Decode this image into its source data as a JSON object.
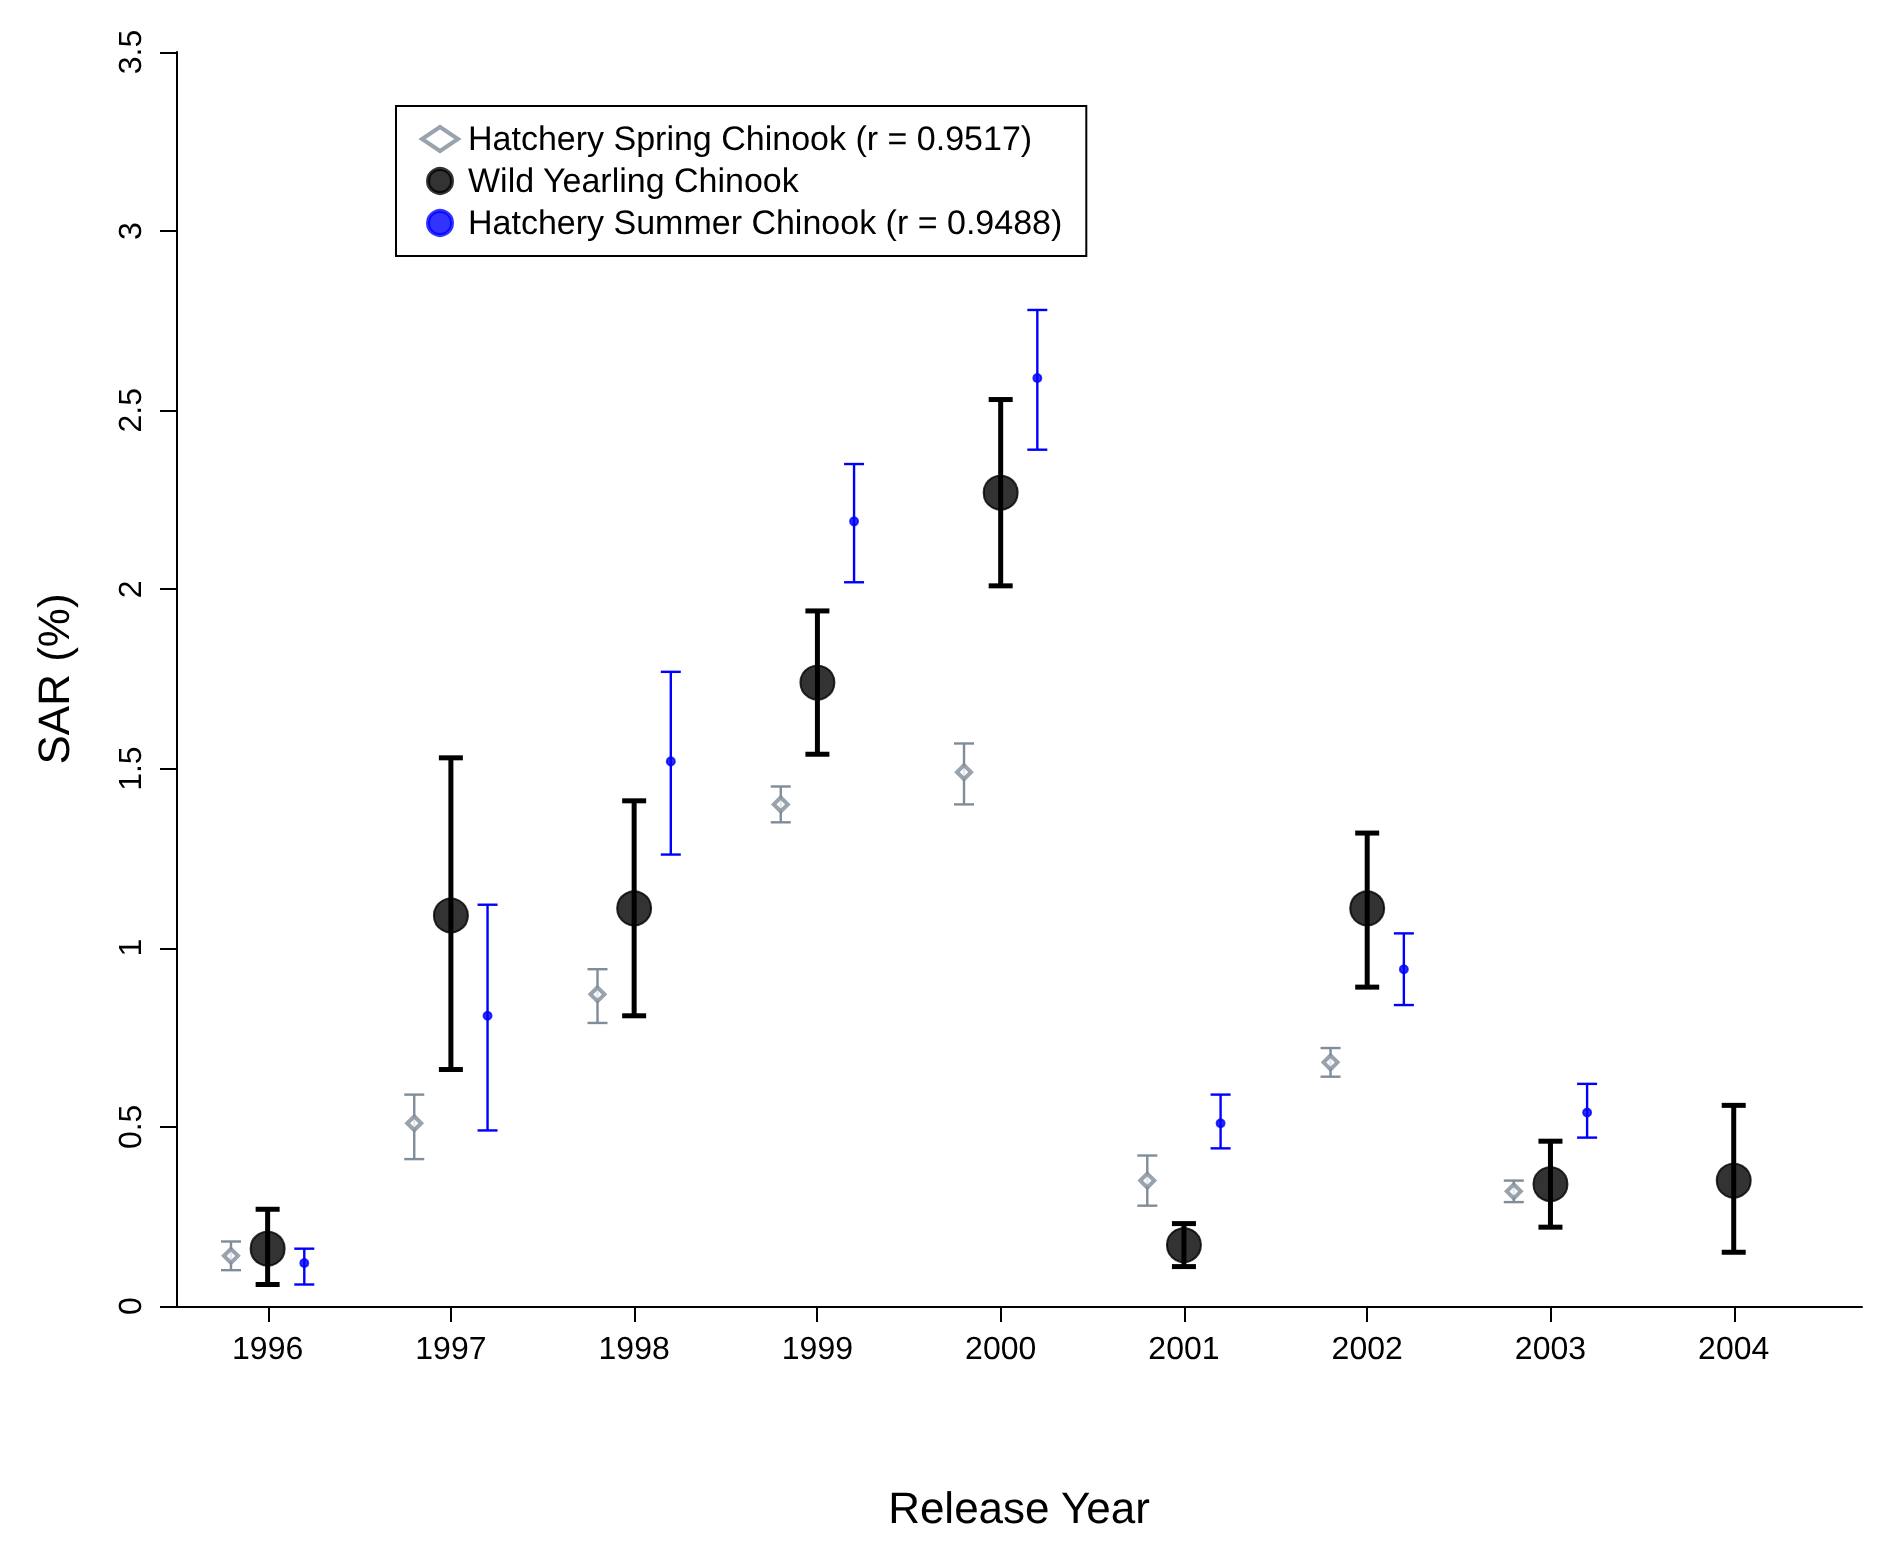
{
  "chart_data": {
    "type": "scatter",
    "xlabel": "Release Year",
    "ylabel": "SAR (%)",
    "xlim": [
      1995.5,
      2004.7
    ],
    "xticks": [
      1996,
      1997,
      1998,
      1999,
      2000,
      2001,
      2002,
      2003,
      2004
    ],
    "ylim": [
      0,
      3.5
    ],
    "yticks": [
      0,
      0.5,
      1,
      1.5,
      2,
      2.5,
      3,
      3.5
    ],
    "grid": false,
    "legend": "top left",
    "series": [
      {
        "name": "Hatchery Spring Chinook (r = 0.9517)",
        "color": "#7f8c99",
        "marker": "diamond",
        "x": [
          1995.8,
          1996.8,
          1997.8,
          1998.8,
          1999.8,
          2000.8,
          2001.8,
          2002.8
        ],
        "values": [
          0.14,
          0.51,
          0.87,
          1.4,
          1.49,
          0.35,
          0.68,
          0.32
        ],
        "errors": [
          [
            0.1,
            0.18
          ],
          [
            0.41,
            0.59
          ],
          [
            0.79,
            0.94
          ],
          [
            1.35,
            1.45
          ],
          [
            1.4,
            1.57
          ],
          [
            0.28,
            0.42
          ],
          [
            0.64,
            0.72
          ],
          [
            0.29,
            0.35
          ]
        ]
      },
      {
        "name": "Wild Yearling Chinook",
        "color": "#000000",
        "marker": "circle",
        "x": [
          1996,
          1997,
          1998,
          1999,
          2000,
          2001,
          2002,
          2003,
          2004
        ],
        "values": [
          0.16,
          1.09,
          1.11,
          1.74,
          2.27,
          0.17,
          1.11,
          0.34,
          0.35
        ],
        "errors": [
          [
            0.06,
            0.27
          ],
          [
            0.66,
            1.53
          ],
          [
            0.81,
            1.41
          ],
          [
            1.54,
            1.94
          ],
          [
            2.01,
            2.53
          ],
          [
            0.11,
            0.23
          ],
          [
            0.89,
            1.32
          ],
          [
            0.22,
            0.46
          ],
          [
            0.15,
            0.56
          ]
        ]
      },
      {
        "name": "Hatchery Summer Chinook (r = 0.9488)",
        "color": "#0000ff",
        "marker": "dot",
        "x": [
          1996.2,
          1997.2,
          1998.2,
          1999.2,
          2000.2,
          2001.2,
          2002.2,
          2003.2
        ],
        "values": [
          0.12,
          0.81,
          1.52,
          2.19,
          2.59,
          0.51,
          0.94,
          0.54
        ],
        "errors": [
          [
            0.06,
            0.16
          ],
          [
            0.49,
            1.12
          ],
          [
            1.26,
            1.77
          ],
          [
            2.02,
            2.35
          ],
          [
            2.39,
            2.78
          ],
          [
            0.44,
            0.59
          ],
          [
            0.84,
            1.04
          ],
          [
            0.47,
            0.62
          ]
        ]
      }
    ]
  }
}
